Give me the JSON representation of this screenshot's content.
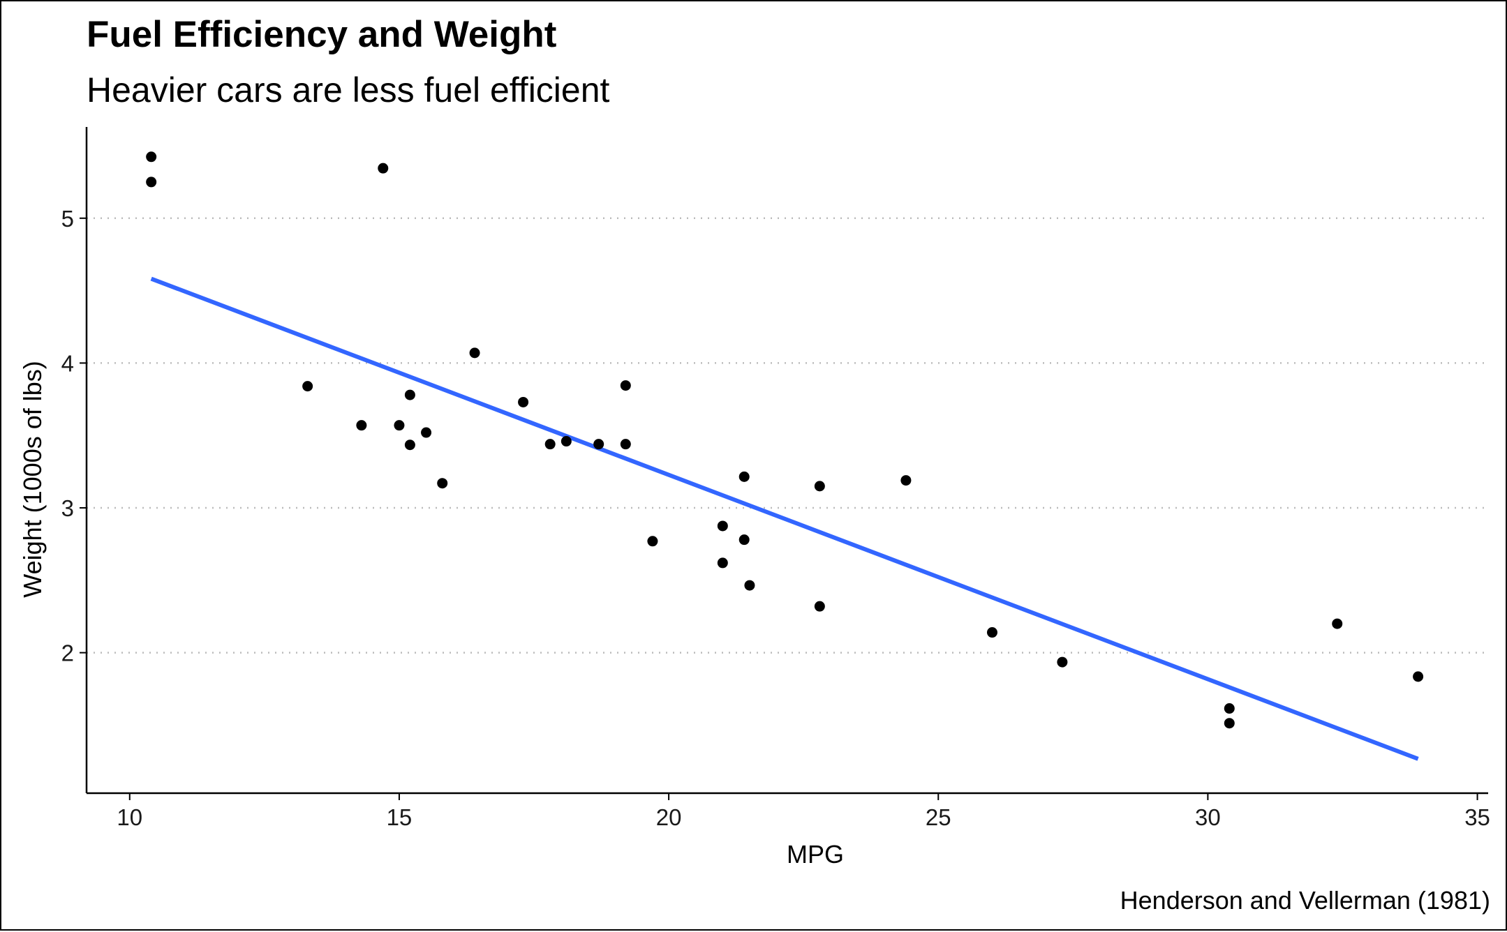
{
  "chart_data": {
    "type": "scatter",
    "title": "Fuel Efficiency and Weight",
    "subtitle": "Heavier cars are less fuel efficient",
    "xlabel": "MPG",
    "ylabel": "Weight (1000s of lbs)",
    "caption": "Henderson and Vellerman (1981)",
    "xlim": [
      9.2,
      35.2
    ],
    "ylim": [
      1.03,
      5.63
    ],
    "xticks": [
      10,
      15,
      20,
      25,
      30,
      35
    ],
    "yticks": [
      2,
      3,
      4,
      5
    ],
    "grid": "horizontal-dotted",
    "colors": {
      "points": "#000000",
      "trend": "#3366FF",
      "grid": "#bbbbbb"
    },
    "series": [
      {
        "type": "scatter",
        "x": [
          21.0,
          21.0,
          22.8,
          21.4,
          18.7,
          18.1,
          14.3,
          24.4,
          22.8,
          19.2,
          17.8,
          16.4,
          17.3,
          15.2,
          10.4,
          10.4,
          14.7,
          32.4,
          30.4,
          33.9,
          21.5,
          15.5,
          15.2,
          13.3,
          19.2,
          27.3,
          26.0,
          30.4,
          15.8,
          19.7,
          15.0,
          21.4
        ],
        "y": [
          2.62,
          2.875,
          2.32,
          3.215,
          3.44,
          3.46,
          3.57,
          3.19,
          3.15,
          3.44,
          3.44,
          4.07,
          3.73,
          3.78,
          5.25,
          5.424,
          5.345,
          2.2,
          1.615,
          1.835,
          2.465,
          3.52,
          3.435,
          3.84,
          3.845,
          1.935,
          2.14,
          1.513,
          3.17,
          2.77,
          3.57,
          2.78
        ]
      },
      {
        "type": "line",
        "x": [
          10.4,
          33.9
        ],
        "y": [
          4.582,
          1.267
        ]
      }
    ]
  }
}
